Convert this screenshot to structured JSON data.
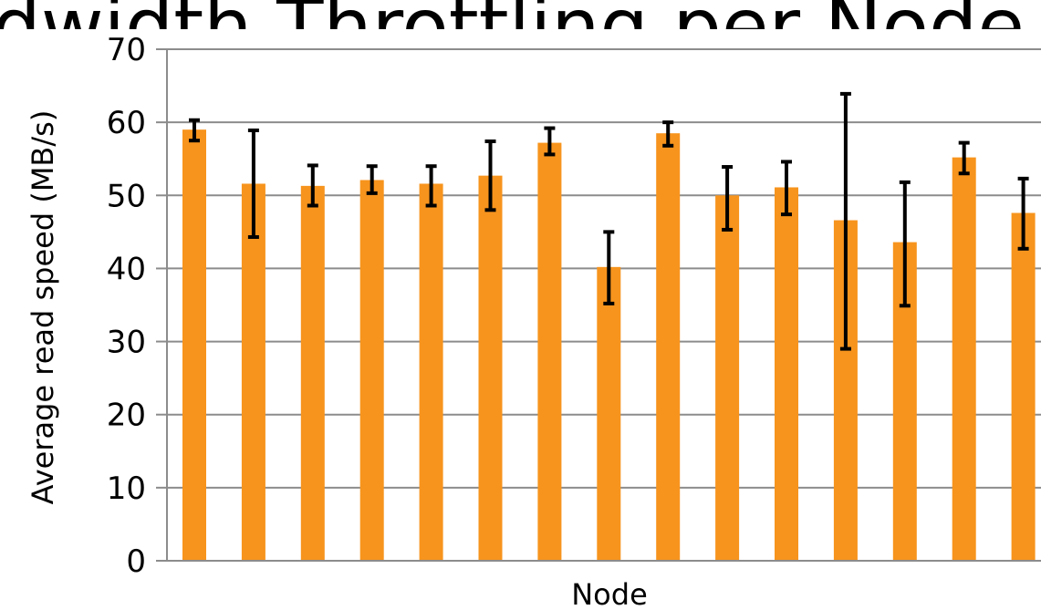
{
  "colors": {
    "bar": "#F7941D",
    "error_bar": "#000000",
    "grid": "#8C8C8C",
    "background": "#FFFFFF"
  },
  "chart_data": {
    "type": "bar",
    "title": "Bandwidth Throttling per Node",
    "xlabel": "Node",
    "ylabel": "Average read speed (MB/s)",
    "ylim": [
      0,
      70
    ],
    "yticks": [
      0,
      10,
      20,
      30,
      40,
      50,
      60,
      70
    ],
    "grid": true,
    "values": [
      59.0,
      51.6,
      51.3,
      52.1,
      51.6,
      52.7,
      57.2,
      40.2,
      58.5,
      50.0,
      51.1,
      46.6,
      43.6,
      55.2,
      47.6
    ],
    "error_low": [
      57.5,
      44.3,
      48.6,
      50.3,
      48.6,
      48.0,
      55.6,
      35.2,
      56.8,
      45.3,
      47.4,
      29.0,
      34.9,
      53.0,
      42.7
    ],
    "error_high": [
      60.3,
      58.9,
      54.1,
      54.0,
      54.0,
      57.4,
      59.2,
      45.0,
      60.0,
      53.9,
      54.6,
      63.9,
      51.8,
      57.2,
      52.3
    ]
  }
}
